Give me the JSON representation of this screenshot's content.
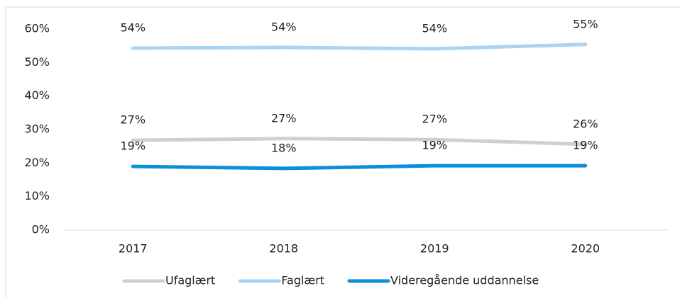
{
  "chart_data": {
    "type": "line",
    "categories": [
      "2017",
      "2018",
      "2019",
      "2020"
    ],
    "series": [
      {
        "name": "Ufaglært",
        "color": "#d0d0cb",
        "values": [
          26.8,
          27.3,
          27.0,
          25.6
        ],
        "value_labels": [
          "27%",
          "27%",
          "27%",
          "26%"
        ]
      },
      {
        "name": "Faglært",
        "color": "#a9d4f5",
        "values": [
          54.3,
          54.5,
          54.1,
          55.4
        ],
        "value_labels": [
          "54%",
          "54%",
          "54%",
          "55%"
        ]
      },
      {
        "name": "Videregående uddannelse",
        "color": "#0b8fdc",
        "values": [
          19.0,
          18.4,
          19.2,
          19.2
        ],
        "value_labels": [
          "19%",
          "18%",
          "19%",
          "19%"
        ]
      }
    ],
    "ylim": [
      0,
      60
    ],
    "yticks": [
      {
        "value": 0,
        "label": "0%"
      },
      {
        "value": 10,
        "label": "10%"
      },
      {
        "value": 20,
        "label": "20%"
      },
      {
        "value": 30,
        "label": "30%"
      },
      {
        "value": 40,
        "label": "40%"
      },
      {
        "value": 50,
        "label": "50%"
      },
      {
        "value": 60,
        "label": "60%"
      }
    ],
    "grid": false,
    "legend": "bottom"
  }
}
